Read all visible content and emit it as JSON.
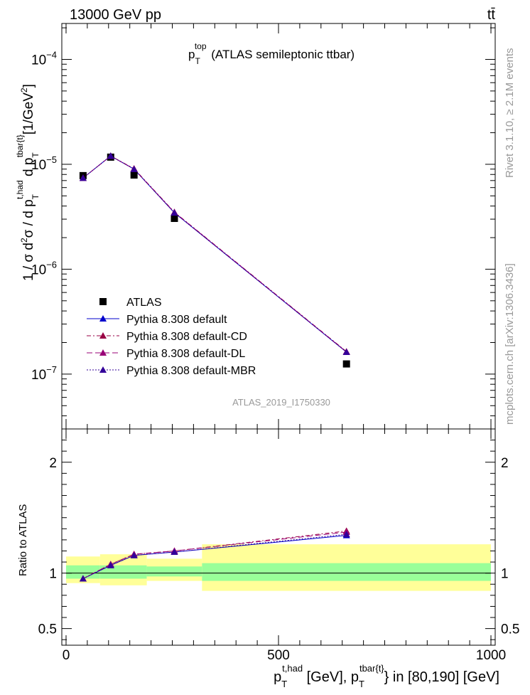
{
  "header": {
    "energy_label": "13000 GeV pp",
    "process_label": "tt̄"
  },
  "side_labels": {
    "rivet": "Rivet 3.1.10, ≥ 2.1M events",
    "mcplots": "mcplots.cern.ch [arXiv:1306.3436]"
  },
  "plot_title": {
    "main": "p",
    "sub": "T",
    "sup": "top",
    "rest": " (ATLAS semileptonic ttbar)"
  },
  "watermark": "ATLAS_2019_I1750330",
  "colors": {
    "data": "#000000",
    "default": "#0000cc",
    "cd": "#990044",
    "dl": "#990077",
    "mbr": "#330099",
    "band_inner": "#99ff99",
    "band_outer": "#ffff99"
  },
  "chart_data": [
    {
      "type": "line",
      "panel": "main",
      "yscale": "log",
      "xlim": [
        -10,
        1010
      ],
      "ylim": [
        3e-08,
        0.00022
      ],
      "ylabel": "1 / σ d²σ / d p_T^{t,had} d p_T^{tbar{t}} [1/GeV²]",
      "yticks": [
        {
          "value": 1e-07,
          "base": "10",
          "exp": "−7"
        },
        {
          "value": 1e-06,
          "base": "10",
          "exp": "−6"
        },
        {
          "value": 1e-05,
          "base": "10",
          "exp": "−5"
        },
        {
          "value": 0.0001,
          "base": "10",
          "exp": "−4"
        }
      ],
      "x": [
        40,
        105,
        160,
        255,
        660
      ],
      "series": [
        {
          "name": "ATLAS",
          "key": "data",
          "marker": "square",
          "values": [
            7.8e-06,
            1.17e-05,
            7.9e-06,
            3.05e-06,
            1.25e-07
          ]
        },
        {
          "name": "Pythia 8.308 default",
          "key": "default",
          "marker": "triangle",
          "dash": "",
          "values": [
            7.4e-06,
            1.2e-05,
            9e-06,
            3.45e-06,
            1.62e-07
          ]
        },
        {
          "name": "Pythia 8.308 default-CD",
          "key": "cd",
          "marker": "triangle",
          "dash": "6,3,2,3",
          "values": [
            7.4e-06,
            1.2e-05,
            9.1e-06,
            3.5e-06,
            1.64e-07
          ]
        },
        {
          "name": "Pythia 8.308 default-DL",
          "key": "dl",
          "marker": "triangle",
          "dash": "8,4",
          "values": [
            7.4e-06,
            1.2e-05,
            9e-06,
            3.48e-06,
            1.63e-07
          ]
        },
        {
          "name": "Pythia 8.308 default-MBR",
          "key": "mbr",
          "marker": "triangle",
          "dash": "2,2",
          "values": [
            7.4e-06,
            1.2e-05,
            9e-06,
            3.45e-06,
            1.62e-07
          ]
        }
      ]
    },
    {
      "type": "line",
      "panel": "ratio",
      "xlim": [
        -10,
        1010
      ],
      "ylim": [
        0.35,
        2.3
      ],
      "ylabel": "Ratio to ATLAS",
      "xlabel": "p_T^{t,had} [GeV], p_T^{tbar{t}} in [80,190] [GeV]",
      "yticks": [
        {
          "value": 0.5,
          "label": "0.5"
        },
        {
          "value": 1,
          "label": "1"
        },
        {
          "value": 2,
          "label": "2"
        }
      ],
      "xticks": [
        {
          "value": 0,
          "label": "0"
        },
        {
          "value": 500,
          "label": "500"
        },
        {
          "value": 1000,
          "label": "1000"
        }
      ],
      "bands": [
        {
          "x0": 0,
          "x1": 80,
          "inner": [
            0.95,
            1.07
          ],
          "outer": [
            0.91,
            1.15
          ]
        },
        {
          "x0": 80,
          "x1": 190,
          "inner": [
            0.95,
            1.07
          ],
          "outer": [
            0.89,
            1.17
          ]
        },
        {
          "x0": 190,
          "x1": 320,
          "inner": [
            0.97,
            1.06
          ],
          "outer": [
            0.93,
            1.13
          ]
        },
        {
          "x0": 320,
          "x1": 1000,
          "inner": [
            0.93,
            1.09
          ],
          "outer": [
            0.84,
            1.26
          ]
        }
      ],
      "x": [
        40,
        105,
        160,
        255,
        660
      ],
      "series": [
        {
          "name": "Pythia 8.308 default",
          "key": "default",
          "dash": "",
          "values": [
            0.95,
            1.07,
            1.16,
            1.19,
            1.34
          ]
        },
        {
          "name": "Pythia 8.308 default-CD",
          "key": "cd",
          "dash": "6,3,2,3",
          "values": [
            0.95,
            1.08,
            1.17,
            1.2,
            1.38
          ]
        },
        {
          "name": "Pythia 8.308 default-DL",
          "key": "dl",
          "dash": "8,4",
          "values": [
            0.95,
            1.08,
            1.17,
            1.2,
            1.37
          ]
        },
        {
          "name": "Pythia 8.308 default-MBR",
          "key": "mbr",
          "dash": "2,2",
          "values": [
            0.95,
            1.07,
            1.16,
            1.19,
            1.35
          ]
        }
      ]
    }
  ]
}
